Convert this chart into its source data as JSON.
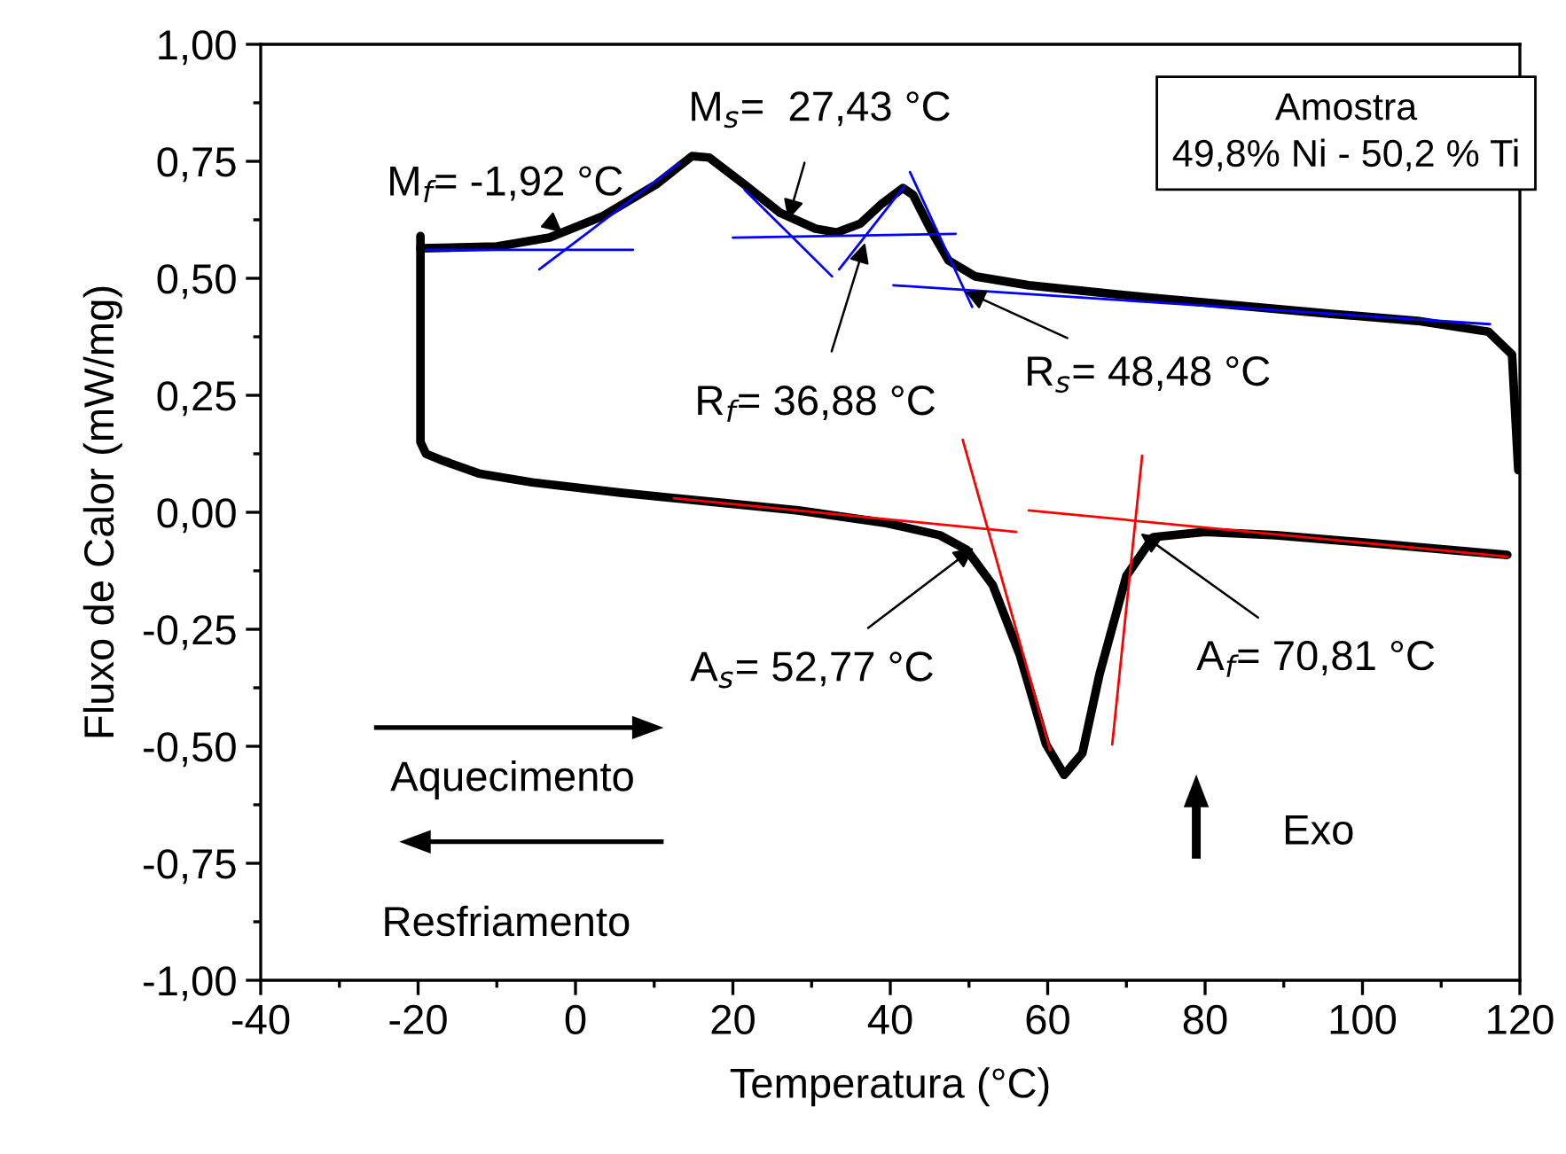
{
  "chart_data": {
    "type": "line",
    "xlabel": "Temperatura (°C)",
    "ylabel": "Fluxo de Calor (mW/mg)",
    "xlim": [
      -40,
      120
    ],
    "xticks": [
      -40,
      -20,
      0,
      20,
      40,
      60,
      80,
      100,
      120
    ],
    "ylim": [
      -1.0,
      1.0
    ],
    "yticks": [
      {
        "value": -1.0,
        "label": "-1,00"
      },
      {
        "value": -0.75,
        "label": "-0,75"
      },
      {
        "value": -0.5,
        "label": "-0,50"
      },
      {
        "value": -0.25,
        "label": "-0,25"
      },
      {
        "value": 0.0,
        "label": "0,00"
      },
      {
        "value": 0.25,
        "label": "0,25"
      },
      {
        "value": 0.5,
        "label": "0,50"
      },
      {
        "value": 0.75,
        "label": "0,75"
      },
      {
        "value": 1.0,
        "label": "1,00"
      }
    ],
    "grid": false,
    "marker": "none",
    "line_style": "solid",
    "series": [
      {
        "color": "#000000",
        "x": [
          -19.7,
          -10,
          -3.3,
          3.5,
          10.2,
          14.8,
          17,
          21.5,
          26,
          30.5,
          33.2,
          36.2,
          38.9,
          41.6,
          42.9,
          45.2,
          47.4,
          50.8,
          57.6,
          73.4,
          96,
          107,
          116,
          119,
          119.8
        ],
        "values": [
          0.564,
          0.568,
          0.587,
          0.633,
          0.7,
          0.761,
          0.758,
          0.7,
          0.64,
          0.606,
          0.598,
          0.617,
          0.659,
          0.693,
          0.678,
          0.602,
          0.538,
          0.504,
          0.485,
          0.458,
          0.424,
          0.409,
          0.386,
          0.337,
          0.09
        ]
      },
      {
        "color": "#000000",
        "x": [
          -19.7,
          -19.7,
          -19,
          -16.8,
          -12.3,
          -5.5,
          5.7,
          17,
          28.3,
          39.5,
          46.3,
          49.7,
          53,
          56.5,
          59.8,
          62.1,
          64.4,
          66.6,
          70,
          73.4,
          80,
          89,
          102.6,
          118.4
        ],
        "values": [
          0.59,
          0.15,
          0.125,
          0.11,
          0.083,
          0.064,
          0.042,
          0.023,
          0.004,
          -0.023,
          -0.049,
          -0.08,
          -0.155,
          -0.307,
          -0.496,
          -0.561,
          -0.515,
          -0.345,
          -0.136,
          -0.053,
          -0.042,
          -0.049,
          -0.068,
          -0.091
        ]
      },
      {
        "color": "#0000ff",
        "x": [
          -19,
          7.3
        ],
        "values": [
          0.561,
          0.561
        ]
      },
      {
        "color": "#0000ff",
        "x": [
          -4.6,
          13.2
        ],
        "values": [
          0.519,
          0.746
        ]
      },
      {
        "color": "#0000ff",
        "x": [
          20,
          48.3
        ],
        "values": [
          0.587,
          0.595
        ]
      },
      {
        "color": "#0000ff",
        "x": [
          21.5,
          32.6
        ],
        "values": [
          0.689,
          0.504
        ]
      },
      {
        "color": "#0000ff",
        "x": [
          33.5,
          41.8
        ],
        "values": [
          0.519,
          0.697
        ]
      },
      {
        "color": "#0000ff",
        "x": [
          42.5,
          50.4
        ],
        "values": [
          0.727,
          0.439
        ]
      },
      {
        "color": "#0000ff",
        "x": [
          40.4,
          116.2
        ],
        "values": [
          0.485,
          0.402
        ]
      },
      {
        "color": "#ff0000",
        "x": [
          12.5,
          56
        ],
        "values": [
          0.03,
          -0.042
        ]
      },
      {
        "color": "#ff0000",
        "x": [
          49.2,
          60.3
        ],
        "values": [
          0.155,
          -0.508
        ]
      },
      {
        "color": "#ff0000",
        "x": [
          57.6,
          118.4
        ],
        "values": [
          0.004,
          -0.095
        ]
      },
      {
        "color": "#ff0000",
        "x": [
          72,
          68.2
        ],
        "values": [
          0.121,
          -0.496
        ]
      }
    ],
    "annotations": [
      {
        "text": "M$_{f}$= -1,92 °C",
        "x": -1.7,
        "y": 0.598
      },
      {
        "text": "M$_{s}$=  27,43 °C",
        "x": 27,
        "y": 0.625
      },
      {
        "text": "R$_{f}$= 36,88 °C",
        "x": 36.8,
        "y": 0.576
      },
      {
        "text": "R$_{s}$= 48,48 °C",
        "x": 49.5,
        "y": 0.472
      },
      {
        "text": "A$_{s}$= 52,77 °C",
        "x": 50.6,
        "y": -0.076
      },
      {
        "text": "A$_{f}$= 70,81 °C",
        "x": 71.8,
        "y": -0.045
      },
      "Amostra\n49,8% Ni - 50,2 % Ti",
      "Aquecimento",
      "Resfriamento",
      "Exo"
    ]
  }
}
